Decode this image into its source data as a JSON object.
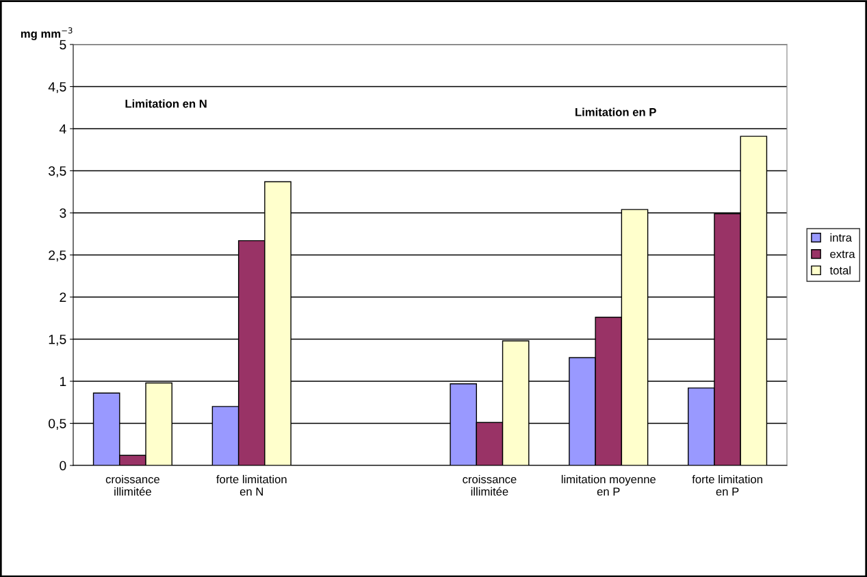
{
  "chart_data": {
    "type": "bar",
    "ylabel": "mg mm$^{−3}$",
    "categories": [
      "croissance\nillimitée",
      "forte limitation\nen N",
      null,
      "croissance\nillimitée",
      "limitation moyenne\nen P",
      "forte limitation\nen P"
    ],
    "series": [
      {
        "name": "intra",
        "color": "#9999ff",
        "values": [
          0.86,
          0.7,
          null,
          0.97,
          1.28,
          0.92
        ]
      },
      {
        "name": "extra",
        "color": "#993366",
        "values": [
          0.12,
          2.67,
          null,
          0.51,
          1.76,
          2.99
        ]
      },
      {
        "name": "total",
        "color": "#ffffcc",
        "values": [
          0.98,
          3.37,
          null,
          1.48,
          3.04,
          3.91
        ]
      }
    ],
    "ylim": [
      0,
      5
    ],
    "yticks": [
      0,
      {
        "value": 0.5,
        "label": "0,5"
      },
      1,
      {
        "value": 1.5,
        "label": "1,5"
      },
      2,
      {
        "value": 2.5,
        "label": "2,5"
      },
      3,
      {
        "value": 3.5,
        "label": "3,5"
      },
      4,
      {
        "value": 4.5,
        "label": "4,5"
      },
      5
    ],
    "annotations": [
      "Limitation en N",
      "Limitation en P"
    ],
    "grid": "y",
    "legend": "right"
  }
}
